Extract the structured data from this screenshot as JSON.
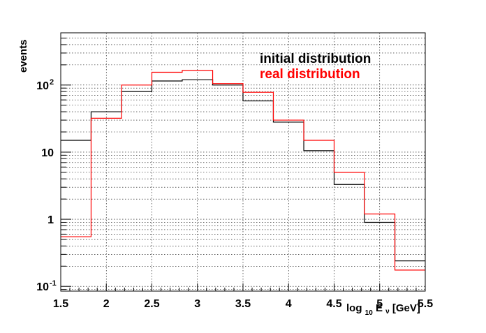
{
  "chart_data": {
    "type": "histogram-step",
    "xlabel_main": "log",
    "xlabel_sub": "10",
    "xlabel_rest": " E",
    "xlabel_nu": "ν",
    "xlabel_unit": " [GeV]",
    "ylabel": "events",
    "xlim": [
      1.5,
      5.5
    ],
    "ylim": [
      0.085,
      600
    ],
    "yscale": "log",
    "grid": true,
    "legend_position": "top-center",
    "x_ticks": [
      {
        "value": 1.5,
        "label": "1.5"
      },
      {
        "value": 2,
        "label": "2"
      },
      {
        "value": 2.5,
        "label": "2.5"
      },
      {
        "value": 3,
        "label": "3"
      },
      {
        "value": 3.5,
        "label": "3.5"
      },
      {
        "value": 4,
        "label": "4"
      },
      {
        "value": 4.5,
        "label": "4.5"
      },
      {
        "value": 5,
        "label": "5"
      },
      {
        "value": 5.5,
        "label": "5.5"
      }
    ],
    "y_ticks": [
      {
        "value": 0.1,
        "base": "10",
        "exp": "-1"
      },
      {
        "value": 1,
        "base": "1",
        "exp": ""
      },
      {
        "value": 10,
        "base": "10",
        "exp": ""
      },
      {
        "value": 100,
        "base": "10",
        "exp": "2"
      }
    ],
    "bin_edges": [
      1.5,
      1.833,
      2.167,
      2.5,
      2.833,
      3.167,
      3.5,
      3.833,
      4.167,
      4.5,
      4.833,
      5.167,
      5.5
    ],
    "series": [
      {
        "name": "initial distribution",
        "color": "#000000",
        "values": [
          15,
          40,
          80,
          115,
          120,
          100,
          58,
          28,
          10.5,
          3.3,
          0.9,
          0.24
        ]
      },
      {
        "name": "real distribution",
        "color": "#ff0000",
        "values": [
          0.55,
          32,
          100,
          155,
          165,
          105,
          78,
          30,
          15,
          5,
          1.2,
          0.175
        ]
      }
    ]
  }
}
